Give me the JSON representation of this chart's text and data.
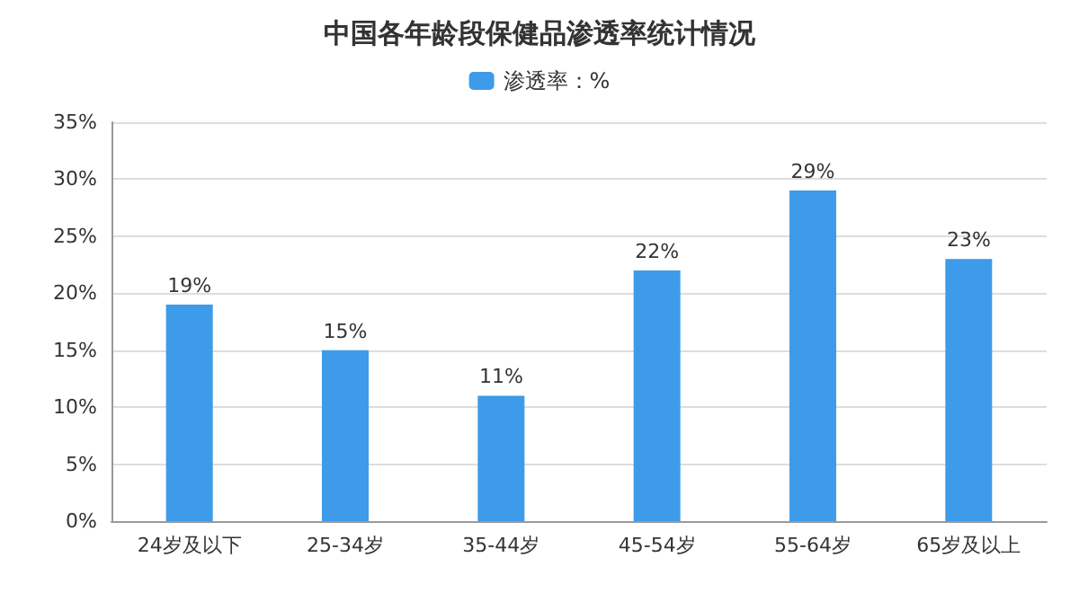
{
  "chart_data": {
    "type": "bar",
    "title": "中国各年龄段保健品渗透率统计情况",
    "categories": [
      "24岁及以下",
      "25-34岁",
      "35-44岁",
      "45-54岁",
      "55-64岁",
      "65岁及以上"
    ],
    "series": [
      {
        "name": "渗透率：%",
        "color": "#3d9be9",
        "values": [
          19,
          15,
          11,
          22,
          29,
          23
        ],
        "value_labels": [
          "19%",
          "15%",
          "11%",
          "22%",
          "29%",
          "23%"
        ]
      }
    ],
    "ylim": [
      0,
      35
    ],
    "yticks": [
      {
        "value": 0,
        "label": "0%"
      },
      {
        "value": 5,
        "label": "5%"
      },
      {
        "value": 10,
        "label": "10%"
      },
      {
        "value": 15,
        "label": "15%"
      },
      {
        "value": 20,
        "label": "20%"
      },
      {
        "value": 25,
        "label": "25%"
      },
      {
        "value": 30,
        "label": "30%"
      },
      {
        "value": 35,
        "label": "35%"
      }
    ],
    "grid": "y",
    "legend": "top"
  }
}
